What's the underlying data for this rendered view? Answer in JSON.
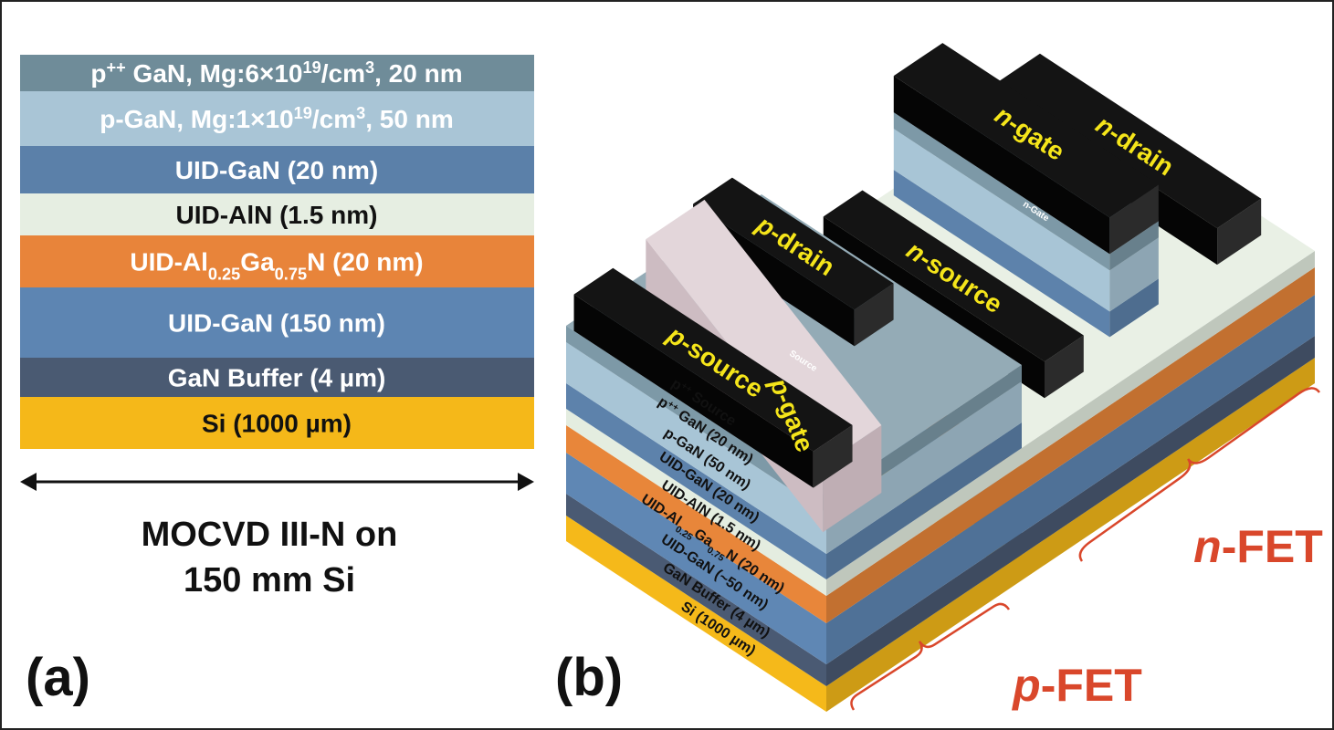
{
  "panel_a": {
    "label": "(a)",
    "layers": [
      {
        "parts": [
          {
            "t": "p"
          },
          {
            "sup": "++"
          },
          {
            "t": " GaN, Mg:6×10"
          },
          {
            "sup": "19"
          },
          {
            "t": "/cm"
          },
          {
            "sup": "3"
          },
          {
            "t": ", 20 nm"
          }
        ]
      },
      {
        "parts": [
          {
            "t": "p-GaN, Mg:1×10"
          },
          {
            "sup": "19"
          },
          {
            "t": "/cm"
          },
          {
            "sup": "3"
          },
          {
            "t": ", 50 nm"
          }
        ]
      },
      {
        "parts": [
          {
            "t": "UID-GaN (20 nm)"
          }
        ]
      },
      {
        "parts": [
          {
            "t": "UID-AlN (1.5 nm)"
          }
        ]
      },
      {
        "parts": [
          {
            "t": "UID-Al"
          },
          {
            "sub": "0.25"
          },
          {
            "t": "Ga"
          },
          {
            "sub": "0.75"
          },
          {
            "t": "N (20 nm)"
          }
        ]
      },
      {
        "parts": [
          {
            "t": "UID-GaN (150 nm)"
          }
        ]
      },
      {
        "parts": [
          {
            "t": "GaN Buffer (4 µm)"
          }
        ]
      },
      {
        "parts": [
          {
            "t": "Si (1000 µm)"
          }
        ]
      }
    ],
    "caption": [
      "MOCVD III-N on",
      "150 mm Si"
    ]
  },
  "panel_b": {
    "label": "(b)",
    "devices": [
      {
        "parts": [
          {
            "i": "p"
          },
          {
            "t": "-source"
          }
        ]
      },
      {
        "parts": [
          {
            "i": "p"
          },
          {
            "t": "-drain"
          }
        ]
      },
      {
        "parts": [
          {
            "i": "p"
          },
          {
            "t": "-gate"
          }
        ]
      },
      {
        "parts": [
          {
            "i": "n"
          },
          {
            "t": "-source"
          }
        ]
      },
      {
        "parts": [
          {
            "i": "n"
          },
          {
            "t": "-gate"
          }
        ]
      },
      {
        "parts": [
          {
            "i": "n"
          },
          {
            "t": "-drain"
          }
        ]
      }
    ],
    "stack_labels": [
      {
        "parts": [
          {
            "t": "p"
          },
          {
            "sup": "++"
          },
          {
            "t": " Source"
          }
        ]
      },
      {
        "parts": [
          {
            "t": "p"
          },
          {
            "sup": "++"
          },
          {
            "t": " GaN (20 nm)"
          }
        ]
      },
      {
        "parts": [
          {
            "t": "p-GaN (50 nm)"
          }
        ]
      },
      {
        "parts": [
          {
            "t": "UID-GaN (20 nm)"
          }
        ]
      },
      {
        "parts": [
          {
            "t": "UID-AlN (1.5 nm)"
          }
        ]
      },
      {
        "parts": [
          {
            "t": "UID-Al"
          },
          {
            "sub": "0.25"
          },
          {
            "t": "Ga"
          },
          {
            "sub": "0.75"
          },
          {
            "t": "N (20 nm)"
          }
        ]
      },
      {
        "parts": [
          {
            "t": "UID-GaN (~50 nm)"
          }
        ]
      },
      {
        "parts": [
          {
            "t": "GaN Buffer (4 µm)"
          }
        ]
      },
      {
        "parts": [
          {
            "t": "Si (1000 µm)"
          }
        ]
      }
    ],
    "small_labels": [
      "Source",
      "n-Gate"
    ],
    "regions": [
      {
        "parts": [
          {
            "i": "n"
          },
          {
            "t": "-FET"
          }
        ]
      },
      {
        "parts": [
          {
            "i": "p"
          },
          {
            "t": "-FET"
          }
        ]
      }
    ]
  }
}
